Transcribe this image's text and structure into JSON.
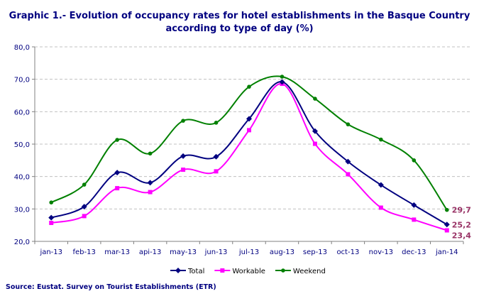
{
  "chart_data": {
    "type": "line",
    "title": "Graphic 1.- Evolution of occupancy rates for hotel establishments in the Basque Country according to type of day (%)",
    "categories": [
      "jan-13",
      "feb-13",
      "mar-13",
      "api-13",
      "may-13",
      "jun-13",
      "jul-13",
      "aug-13",
      "sep-13",
      "oct-13",
      "nov-13",
      "dec-13",
      "jan-14"
    ],
    "ylim": [
      20,
      80
    ],
    "yticks": [
      "20,0",
      "30,0",
      "40,0",
      "50,0",
      "60,0",
      "70,0",
      "80,0"
    ],
    "grid": true,
    "legend_placement": "bottom",
    "series": [
      {
        "name": "Total",
        "color": "#000080",
        "marker": "diamond",
        "values": [
          27.3,
          30.7,
          41.2,
          38.1,
          46.3,
          46.1,
          57.8,
          69.2,
          54.0,
          44.6,
          37.4,
          31.2,
          25.2
        ],
        "last_label": "25,2"
      },
      {
        "name": "Workable",
        "color": "#FF00FF",
        "marker": "square",
        "values": [
          25.7,
          27.8,
          36.4,
          35.2,
          42.1,
          41.6,
          54.3,
          68.6,
          50.1,
          40.7,
          30.4,
          26.7,
          23.4
        ],
        "last_label": "23,4"
      },
      {
        "name": "Weekend",
        "color": "#008000",
        "marker": "circle",
        "values": [
          32.0,
          37.5,
          51.3,
          47.1,
          57.2,
          56.6,
          67.7,
          70.8,
          64.0,
          56.1,
          51.4,
          45.0,
          29.7
        ],
        "last_label": "29,7"
      }
    ]
  },
  "source": "Source: Eustat. Survey on Tourist Establishments (ETR)"
}
